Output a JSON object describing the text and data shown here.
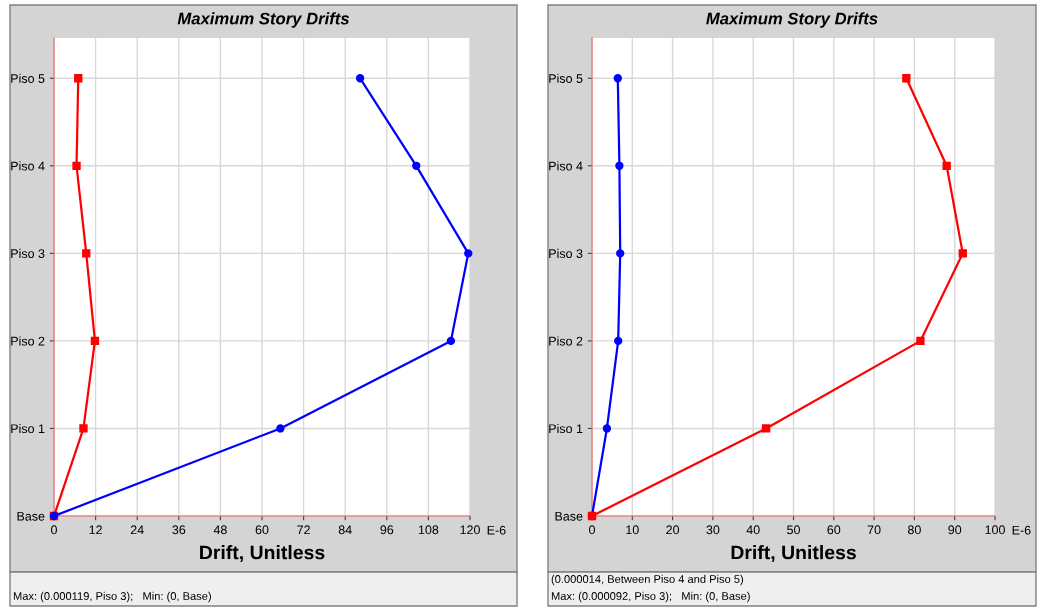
{
  "chart_data": [
    {
      "type": "line",
      "orientation": "horizontal",
      "title": "Maximum Story Drifts",
      "xlabel": "Drift, Unitless",
      "categories": [
        "Piso 5",
        "Piso 4",
        "Piso 3",
        "Piso 2",
        "Piso 1",
        "Base"
      ],
      "series": [
        {
          "color": "#ff0000",
          "marker": "square",
          "values": [
            7,
            6.5,
            9.3,
            11.8,
            8.5,
            0
          ]
        },
        {
          "color": "#0000ff",
          "marker": "circle",
          "values": [
            88.3,
            104.5,
            119.5,
            114.5,
            65.3,
            0
          ]
        }
      ],
      "xlim": [
        0,
        120
      ],
      "xticks": [
        0,
        12,
        24,
        36,
        48,
        60,
        72,
        84,
        96,
        108,
        120
      ],
      "grid": true,
      "line_style": "solid",
      "annotations": [
        "E-6",
        "Max: (0.000119, Piso 3);   Min: (0, Base)"
      ]
    },
    {
      "type": "line",
      "orientation": "horizontal",
      "title": "Maximum Story Drifts",
      "xlabel": "Drift, Unitless",
      "categories": [
        "Piso 5",
        "Piso 4",
        "Piso 3",
        "Piso 2",
        "Piso 1",
        "Base"
      ],
      "series": [
        {
          "color": "#0000ff",
          "marker": "circle",
          "values": [
            6.4,
            6.8,
            7,
            6.5,
            3.7,
            0
          ]
        },
        {
          "color": "#ff0000",
          "marker": "square",
          "values": [
            78,
            88,
            92,
            81.5,
            43.2,
            0
          ]
        }
      ],
      "xlim": [
        0,
        100
      ],
      "xticks": [
        0,
        10,
        20,
        30,
        40,
        50,
        60,
        70,
        80,
        90,
        100
      ],
      "grid": true,
      "line_style": "solid",
      "annotations": [
        "E-6",
        "(0.000014, Between Piso 4 and Piso 5)",
        "Max: (0.000092, Piso 3);   Min: (0, Base)"
      ]
    }
  ]
}
